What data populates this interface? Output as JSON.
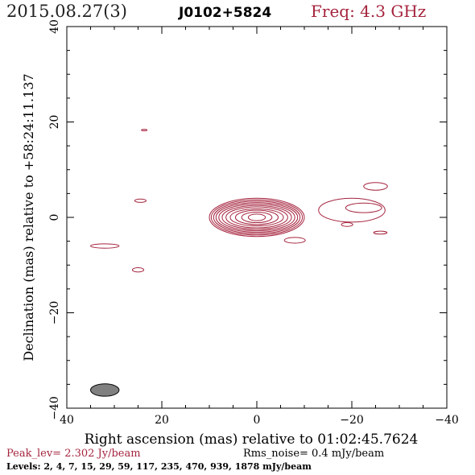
{
  "header": {
    "epoch": "2015.08.27(3)",
    "source": "J0102+5824",
    "freq": "Freq: 4.3 GHz"
  },
  "chart_data": {
    "type": "contour",
    "xlabel": "Right ascension (mas) relative to 01:02:45.7624",
    "ylabel": "Declination (mas) relative to +58:24:11.137",
    "xlim": [
      40,
      -40
    ],
    "ylim": [
      -40,
      40
    ],
    "x_ticks": [
      40,
      20,
      0,
      -20,
      -40
    ],
    "y_ticks": [
      -40,
      -20,
      0,
      20,
      40
    ],
    "x_tick_labels": [
      "40",
      "20",
      "0",
      "−20",
      "−40"
    ],
    "y_tick_labels": [
      "−40",
      "−20",
      "0",
      "20",
      "40"
    ],
    "core": {
      "center": [
        0,
        0
      ],
      "rings": [
        [
          10.0,
          4.0
        ],
        [
          9.6,
          3.7
        ],
        [
          9.1,
          3.4
        ],
        [
          8.6,
          3.1
        ],
        [
          8.0,
          2.8
        ],
        [
          7.3,
          2.5
        ],
        [
          6.5,
          2.2
        ],
        [
          5.6,
          1.8
        ],
        [
          4.5,
          1.5
        ],
        [
          3.2,
          1.1
        ],
        [
          1.8,
          0.7
        ]
      ]
    },
    "features": [
      {
        "x": 23.7,
        "y": 18.3,
        "rx": 0.6,
        "ry": 0.15
      },
      {
        "x": 24.5,
        "y": 3.5,
        "rx": 1.2,
        "ry": 0.35
      },
      {
        "x": 32.0,
        "y": -6.0,
        "rx": 3.0,
        "ry": 0.45
      },
      {
        "x": 25.0,
        "y": -11.0,
        "rx": 1.2,
        "ry": 0.45
      },
      {
        "x": -8.0,
        "y": -4.8,
        "rx": 2.2,
        "ry": 0.6
      },
      {
        "x": -20.0,
        "y": 1.5,
        "rx": 7.0,
        "ry": 2.5
      },
      {
        "x": -22.5,
        "y": 2.0,
        "rx": 3.8,
        "ry": 1.0
      },
      {
        "x": -25.0,
        "y": 6.5,
        "rx": 2.5,
        "ry": 0.8
      },
      {
        "x": -19.0,
        "y": -1.5,
        "rx": 1.2,
        "ry": 0.4
      },
      {
        "x": -26.0,
        "y": -3.2,
        "rx": 1.4,
        "ry": 0.3
      }
    ],
    "beam": {
      "x": 32.0,
      "y": -36.2,
      "rx": 3.0,
      "ry": 1.3
    }
  },
  "footer": {
    "peak": "Peak_lev=  2.302 Jy/beam",
    "rms": "Rms_noise=  0.4 mJy/beam",
    "levels": "Levels:   2,   4,   7,  15,  29,  59, 117, 235, 470, 939, 1878 mJy/beam"
  }
}
